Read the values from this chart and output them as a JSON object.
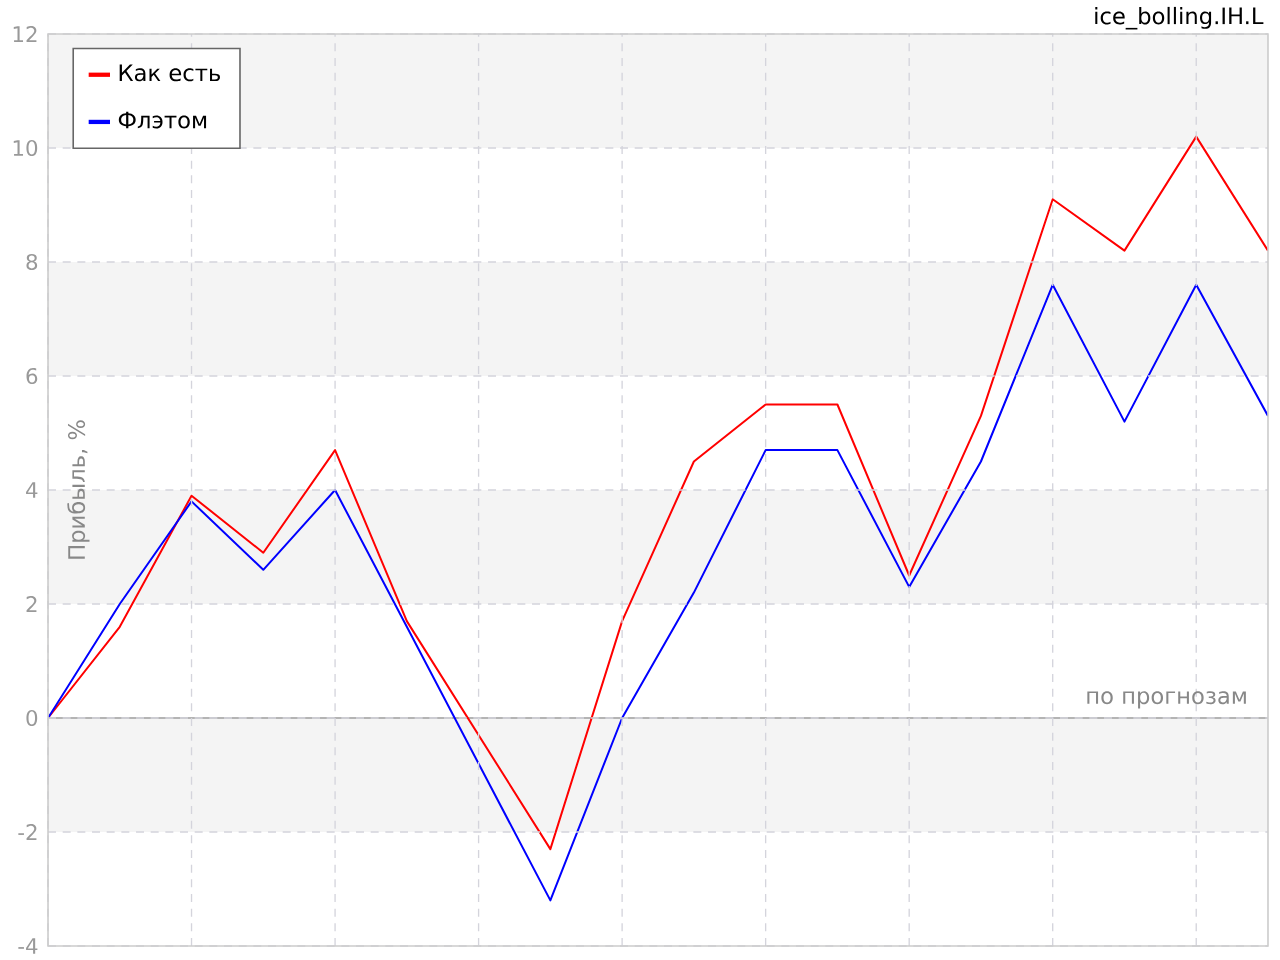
{
  "chart_data": {
    "type": "line",
    "title": "ice_bolling.IH.L",
    "xlabel": "по прогнозам",
    "ylabel": "Прибыль, %",
    "categories": [
      null,
      null,
      null,
      null,
      null,
      null,
      null,
      null,
      null,
      null,
      null,
      null,
      null,
      null,
      null,
      null,
      null,
      null
    ],
    "series": [
      {
        "name": "Как есть",
        "color": "#ff0000",
        "values": [
          0,
          1.6,
          3.9,
          2.9,
          4.7,
          1.7,
          -0.3,
          -2.3,
          1.7,
          4.5,
          5.5,
          5.5,
          2.5,
          5.3,
          9.1,
          8.2,
          10.2,
          8.2
        ]
      },
      {
        "name": "Флэтом",
        "color": "#0000ff",
        "values": [
          0,
          2.0,
          3.8,
          2.6,
          4.0,
          1.6,
          -0.8,
          -3.2,
          0.0,
          2.2,
          4.7,
          4.7,
          2.3,
          4.5,
          7.6,
          5.2,
          7.6,
          5.3
        ]
      }
    ],
    "ylim": [
      -4,
      12
    ],
    "yticks": [
      -4,
      -2,
      0,
      2,
      4,
      6,
      8,
      10,
      12
    ],
    "grid": true,
    "legend": "top left",
    "tick_labels": "y",
    "line_style": "solid",
    "ref_lines": [
      {
        "axis": "y",
        "value": 0,
        "color": "#b4b4b4"
      }
    ],
    "bands": [
      {
        "axis": "y",
        "from": -2,
        "to": 0,
        "color": "#f4f4f4"
      },
      {
        "axis": "y",
        "from": 2,
        "to": 4,
        "color": "#f4f4f4"
      },
      {
        "axis": "y",
        "from": 6,
        "to": 8,
        "color": "#f4f4f4"
      },
      {
        "axis": "y",
        "from": 10,
        "to": 12,
        "color": "#f4f4f4"
      }
    ]
  }
}
